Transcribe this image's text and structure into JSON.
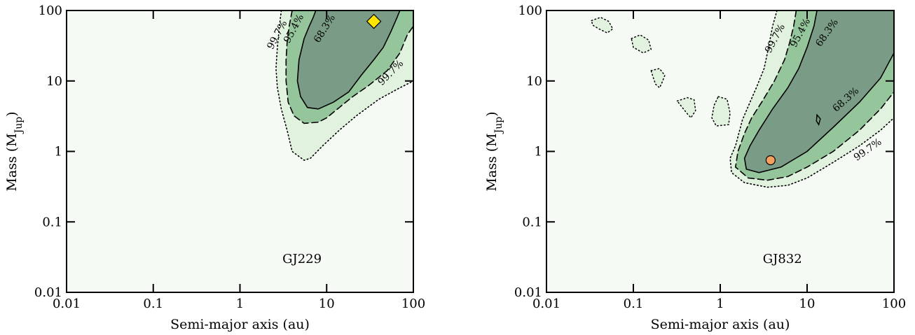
{
  "chart_data": [
    {
      "type": "contour",
      "x_scale": "log",
      "y_scale": "log",
      "xlim": [
        0.01,
        100
      ],
      "ylim": [
        0.01,
        100
      ],
      "xticks": [
        "0.01",
        "0.1",
        "1",
        "10",
        "100"
      ],
      "yticks": [
        "0.01",
        "0.1",
        "1",
        "10",
        "100"
      ],
      "xlabel": "Semi-major axis (au)",
      "ylabel_main": "Mass (M",
      "ylabel_sub": "Jup",
      "ylabel_end": ")",
      "panel_label": "GJ229",
      "colors": {
        "background": "#f6faf5",
        "level_997": "#e1f2df",
        "level_954": "#95c59b",
        "level_683": "#7a9c86"
      },
      "contours": [
        {
          "level": "99.7%",
          "line_style": "dotted",
          "points": [
            [
              3.0,
              100
            ],
            [
              2.85,
              60
            ],
            [
              2.7,
              30
            ],
            [
              2.6,
              15
            ],
            [
              2.7,
              8
            ],
            [
              3.0,
              4
            ],
            [
              3.5,
              2
            ],
            [
              4.0,
              1.0
            ],
            [
              5.5,
              0.75
            ],
            [
              6.5,
              0.8
            ],
            [
              9,
              1.2
            ],
            [
              14,
              2.0
            ],
            [
              22,
              3.2
            ],
            [
              40,
              5.5
            ],
            [
              70,
              8
            ],
            [
              100,
              10
            ]
          ]
        },
        {
          "level": "95.4%",
          "line_style": "dashed",
          "points": [
            [
              4.0,
              100
            ],
            [
              3.7,
              60
            ],
            [
              3.5,
              35
            ],
            [
              3.4,
              20
            ],
            [
              3.4,
              10
            ],
            [
              3.6,
              5
            ],
            [
              4.2,
              3.2
            ],
            [
              5.5,
              2.5
            ],
            [
              8,
              2.6
            ],
            [
              10,
              3.0
            ],
            [
              14,
              4.2
            ],
            [
              20,
              6
            ],
            [
              30,
              8.5
            ],
            [
              50,
              14
            ],
            [
              70,
              25
            ],
            [
              85,
              45
            ],
            [
              100,
              60
            ]
          ]
        },
        {
          "level": "68.3%",
          "line_style": "solid",
          "points": [
            [
              7.5,
              100
            ],
            [
              7,
              80
            ],
            [
              6.3,
              60
            ],
            [
              5.5,
              40
            ],
            [
              4.8,
              20
            ],
            [
              4.6,
              10
            ],
            [
              5.0,
              6
            ],
            [
              6.0,
              4.2
            ],
            [
              8,
              4.0
            ],
            [
              12,
              5
            ],
            [
              18,
              7
            ],
            [
              25,
              12
            ],
            [
              35,
              20
            ],
            [
              45,
              30
            ],
            [
              55,
              50
            ],
            [
              65,
              80
            ],
            [
              70,
              100
            ]
          ]
        }
      ],
      "contour_labels": [
        {
          "text": "99.7%",
          "a": 2.7,
          "m": 45,
          "rotate": -62
        },
        {
          "text": "95.4%",
          "a": 4.2,
          "m": 55,
          "rotate": -62
        },
        {
          "text": "68.3%",
          "a": 9.5,
          "m": 55,
          "rotate": -58
        },
        {
          "text": "99.7%",
          "a": 55,
          "m": 13,
          "rotate": -45
        }
      ],
      "marker": {
        "shape": "diamond",
        "a": 35,
        "m": 70,
        "color": "#ffe600"
      }
    },
    {
      "type": "contour",
      "x_scale": "log",
      "y_scale": "log",
      "xlim": [
        0.01,
        100
      ],
      "ylim": [
        0.01,
        100
      ],
      "xticks": [
        "0.01",
        "0.1",
        "1",
        "10",
        "100"
      ],
      "yticks": [
        "0.01",
        "0.1",
        "1",
        "10",
        "100"
      ],
      "xlabel": "Semi-major axis (au)",
      "ylabel_main": "Mass (M",
      "ylabel_sub": "Jup",
      "ylabel_end": ")",
      "panel_label": "GJ832",
      "colors": {
        "background": "#f6faf5",
        "level_997": "#e1f2df",
        "level_954": "#95c59b",
        "level_683": "#7a9c86"
      },
      "contours": [
        {
          "level": "99.7%",
          "line_style": "dotted",
          "points": [
            [
              4.5,
              100
            ],
            [
              4.0,
              60
            ],
            [
              3.6,
              30
            ],
            [
              3.2,
              15
            ],
            [
              2.6,
              8
            ],
            [
              2.2,
              5
            ],
            [
              1.8,
              2.8
            ],
            [
              1.5,
              1.2
            ],
            [
              1.3,
              0.8
            ],
            [
              1.35,
              0.5
            ],
            [
              1.9,
              0.36
            ],
            [
              3.5,
              0.31
            ],
            [
              6,
              0.33
            ],
            [
              10,
              0.42
            ],
            [
              20,
              0.7
            ],
            [
              40,
              1.2
            ],
            [
              70,
              2.0
            ],
            [
              100,
              3.0
            ]
          ]
        },
        {
          "level": "95.4%",
          "line_style": "dashed",
          "points": [
            [
              7.5,
              100
            ],
            [
              7,
              60
            ],
            [
              6.3,
              35
            ],
            [
              5.5,
              20
            ],
            [
              4.2,
              10
            ],
            [
              3.0,
              5
            ],
            [
              2.3,
              3
            ],
            [
              1.9,
              1.8
            ],
            [
              1.6,
              1.0
            ],
            [
              1.5,
              0.6
            ],
            [
              2.1,
              0.42
            ],
            [
              3.5,
              0.39
            ],
            [
              6,
              0.44
            ],
            [
              10,
              0.6
            ],
            [
              20,
              1.0
            ],
            [
              40,
              2.0
            ],
            [
              70,
              4
            ],
            [
              100,
              7
            ]
          ]
        },
        {
          "level": "68.3%",
          "line_style": "solid",
          "points": [
            [
              13,
              100
            ],
            [
              12,
              60
            ],
            [
              10,
              30
            ],
            [
              8,
              15
            ],
            [
              6,
              8
            ],
            [
              4,
              4
            ],
            [
              2.8,
              2
            ],
            [
              2.2,
              1.2
            ],
            [
              1.9,
              0.8
            ],
            [
              2.0,
              0.56
            ],
            [
              2.8,
              0.5
            ],
            [
              5,
              0.6
            ],
            [
              10,
              1.0
            ],
            [
              20,
              2.2
            ],
            [
              40,
              5
            ],
            [
              70,
              11
            ],
            [
              100,
              25
            ]
          ]
        }
      ],
      "islands": [
        {
          "points": [
            [
              0.033,
              72
            ],
            [
              0.042,
              80
            ],
            [
              0.052,
              70
            ],
            [
              0.058,
              55
            ],
            [
              0.05,
              48
            ],
            [
              0.04,
              55
            ],
            [
              0.034,
              62
            ]
          ]
        },
        {
          "points": [
            [
              0.095,
              40
            ],
            [
              0.12,
              45
            ],
            [
              0.15,
              38
            ],
            [
              0.16,
              28
            ],
            [
              0.13,
              25
            ],
            [
              0.1,
              30
            ]
          ]
        },
        {
          "points": [
            [
              0.16,
              14
            ],
            [
              0.2,
              15
            ],
            [
              0.23,
              12
            ],
            [
              0.21,
              9
            ],
            [
              0.2,
              8
            ],
            [
              0.18,
              9
            ],
            [
              0.17,
              11
            ]
          ]
        },
        {
          "points": [
            [
              0.32,
              5.2
            ],
            [
              0.42,
              5.8
            ],
            [
              0.5,
              5.4
            ],
            [
              0.52,
              3.8
            ],
            [
              0.46,
              3.0
            ],
            [
              0.42,
              3.4
            ],
            [
              0.36,
              4.3
            ]
          ]
        },
        {
          "points": [
            [
              0.95,
              6
            ],
            [
              1.2,
              5.5
            ],
            [
              1.3,
              3.5
            ],
            [
              1.25,
              2.4
            ],
            [
              0.9,
              2.3
            ],
            [
              0.8,
              3.0
            ],
            [
              0.85,
              4.5
            ]
          ]
        }
      ],
      "small_68_island": [
        [
          13,
          3.3
        ],
        [
          14.2,
          2.9
        ],
        [
          13.6,
          2.4
        ],
        [
          12.8,
          2.7
        ]
      ],
      "contour_labels": [
        {
          "text": "99.7%",
          "a": 4.3,
          "m": 40,
          "rotate": -62
        },
        {
          "text": "95.4%",
          "a": 8.4,
          "m": 48,
          "rotate": -62
        },
        {
          "text": "68.3%",
          "a": 17,
          "m": 48,
          "rotate": -55
        },
        {
          "text": "68.3%",
          "a": 28,
          "m": 5.4,
          "rotate": -42
        },
        {
          "text": "99.7%",
          "a": 50,
          "m": 1.05,
          "rotate": -35
        }
      ],
      "marker": {
        "shape": "circle",
        "a": 3.8,
        "m": 0.75,
        "color": "#f4a05e"
      }
    }
  ]
}
